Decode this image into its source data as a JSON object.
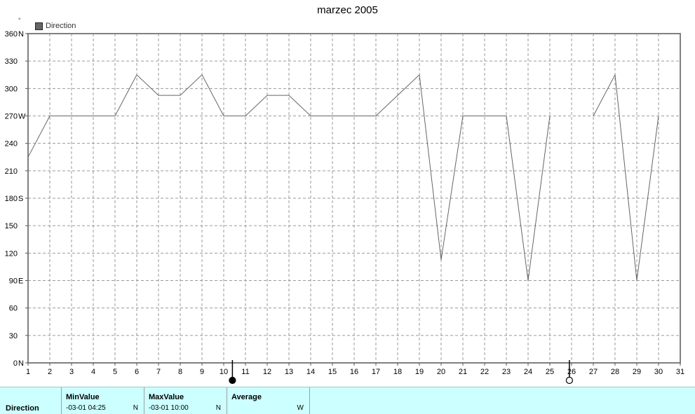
{
  "chart_data": {
    "type": "line",
    "title": "marzec 2005",
    "unit_label": "°",
    "legend": [
      {
        "name": "Direction",
        "color": "#666666"
      }
    ],
    "ylim": [
      0,
      360
    ],
    "xlim": [
      1,
      31
    ],
    "grid": true,
    "y_ticks": [
      {
        "value": 0,
        "label": "0",
        "compass": "N"
      },
      {
        "value": 30,
        "label": "30",
        "compass": ""
      },
      {
        "value": 60,
        "label": "60",
        "compass": ""
      },
      {
        "value": 90,
        "label": "90",
        "compass": "E"
      },
      {
        "value": 120,
        "label": "120",
        "compass": ""
      },
      {
        "value": 150,
        "label": "150",
        "compass": ""
      },
      {
        "value": 180,
        "label": "180",
        "compass": "S"
      },
      {
        "value": 210,
        "label": "210",
        "compass": ""
      },
      {
        "value": 240,
        "label": "240",
        "compass": ""
      },
      {
        "value": 270,
        "label": "270",
        "compass": "W"
      },
      {
        "value": 300,
        "label": "300",
        "compass": ""
      },
      {
        "value": 330,
        "label": "330",
        "compass": ""
      },
      {
        "value": 360,
        "label": "360",
        "compass": "N"
      }
    ],
    "x_ticks": [
      "1",
      "2",
      "3",
      "4",
      "5",
      "6",
      "7",
      "8",
      "9",
      "10",
      "11",
      "12",
      "13",
      "14",
      "15",
      "16",
      "17",
      "18",
      "19",
      "20",
      "21",
      "22",
      "23",
      "24",
      "25",
      "26",
      "27",
      "28",
      "29",
      "30",
      "31"
    ],
    "series": [
      {
        "name": "Direction",
        "color": "#666666",
        "x": [
          1,
          2,
          3,
          4,
          5,
          6,
          7,
          8,
          9,
          10,
          11,
          12,
          13,
          14,
          15,
          16,
          17,
          18,
          19,
          20,
          21,
          22,
          23,
          24,
          25,
          26,
          27,
          28,
          29,
          30
        ],
        "y": [
          225,
          270,
          270,
          270,
          270,
          315,
          292.5,
          292.5,
          315,
          270,
          270,
          292.5,
          292.5,
          270,
          270,
          270,
          270,
          292.5,
          315,
          112.5,
          270,
          270,
          270,
          90,
          270,
          null,
          270,
          315,
          90,
          270
        ]
      }
    ],
    "moon_phases": [
      {
        "day": 10.4,
        "phase": "new-moon"
      },
      {
        "day": 25.9,
        "phase": "full-moon"
      }
    ]
  },
  "stats": {
    "series_label": "Direction",
    "min": {
      "header": "MinValue",
      "date": "-03-01  04:25",
      "dir": "N"
    },
    "max": {
      "header": "MaxValue",
      "date": "-03-01  10:00",
      "dir": "N"
    },
    "avg": {
      "header": "Average",
      "date": "",
      "dir": "W"
    }
  }
}
